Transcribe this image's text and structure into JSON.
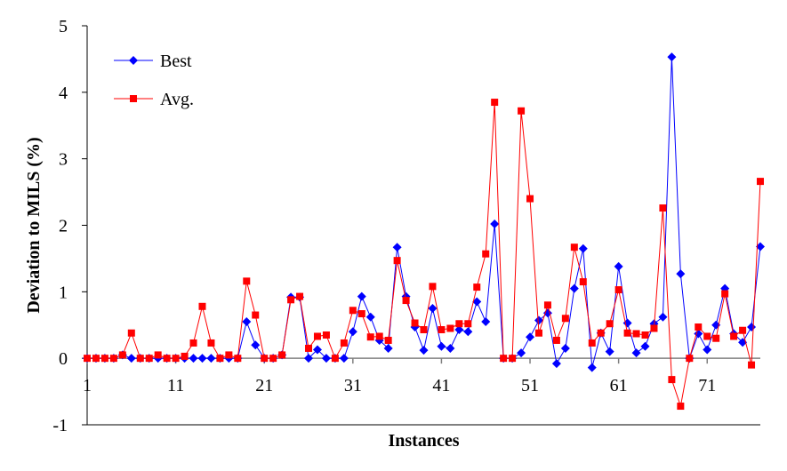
{
  "chart_data": {
    "type": "line",
    "title": "",
    "xlabel": "Instances",
    "ylabel": "Deviation to MILS (%)",
    "ylim": [
      -1,
      5
    ],
    "y_ticks": [
      "-1",
      "0",
      "1",
      "2",
      "3",
      "4",
      "5"
    ],
    "x_ticks": [
      "1",
      "11",
      "21",
      "31",
      "41",
      "51",
      "61",
      "71"
    ],
    "x_tick_positions": [
      1,
      11,
      21,
      31,
      41,
      51,
      61,
      71
    ],
    "x_range": [
      1,
      77
    ],
    "grid": false,
    "legend_position": "top-left",
    "x": [
      1,
      2,
      3,
      4,
      5,
      6,
      7,
      8,
      9,
      10,
      11,
      12,
      13,
      14,
      15,
      16,
      17,
      18,
      19,
      20,
      21,
      22,
      23,
      24,
      25,
      26,
      27,
      28,
      29,
      30,
      31,
      32,
      33,
      34,
      35,
      36,
      37,
      38,
      39,
      40,
      41,
      42,
      43,
      44,
      45,
      46,
      47,
      48,
      49,
      50,
      51,
      52,
      53,
      54,
      55,
      56,
      57,
      58,
      59,
      60,
      61,
      62,
      63,
      64,
      65,
      66,
      67,
      68,
      69,
      70,
      71,
      72,
      73,
      74,
      75,
      76,
      77
    ],
    "series": [
      {
        "name": "Best",
        "color": "#0000ff",
        "marker": "diamond",
        "values": [
          0,
          0,
          0,
          0,
          0.05,
          0,
          0,
          0,
          0,
          0,
          0,
          0,
          0,
          0,
          0,
          0,
          0,
          0,
          0.55,
          0.2,
          0,
          0,
          0.05,
          0.92,
          0.92,
          0,
          0.13,
          0,
          0,
          0,
          0.4,
          0.93,
          0.62,
          0.27,
          0.15,
          1.67,
          0.93,
          0.47,
          0.12,
          0.75,
          0.18,
          0.15,
          0.43,
          0.4,
          0.85,
          0.55,
          2.02,
          0,
          0,
          0.08,
          0.32,
          0.57,
          0.68,
          -0.08,
          0.15,
          1.05,
          1.65,
          -0.14,
          0.38,
          0.1,
          1.38,
          0.53,
          0.08,
          0.18,
          0.52,
          0.62,
          4.53,
          1.27,
          0,
          0.37,
          0.13,
          0.5,
          1.05,
          0.37,
          0.24,
          0.47,
          1.68
        ]
      },
      {
        "name": "Avg.",
        "color": "#ff0000",
        "marker": "square",
        "values": [
          0,
          0,
          0,
          0,
          0.05,
          0.38,
          0,
          0,
          0.05,
          0,
          0,
          0.03,
          0.23,
          0.78,
          0.23,
          0,
          0.05,
          0,
          1.16,
          0.65,
          0,
          0,
          0.05,
          0.88,
          0.93,
          0.15,
          0.33,
          0.35,
          0,
          0.23,
          0.72,
          0.67,
          0.32,
          0.33,
          0.27,
          1.47,
          0.87,
          0.53,
          0.43,
          1.08,
          0.43,
          0.45,
          0.52,
          0.52,
          1.07,
          1.57,
          3.85,
          0,
          0,
          3.72,
          2.4,
          0.38,
          0.8,
          0.27,
          0.6,
          1.67,
          1.15,
          0.23,
          0.38,
          0.52,
          1.03,
          0.38,
          0.37,
          0.35,
          0.45,
          2.26,
          -0.32,
          -0.72,
          0,
          0.47,
          0.33,
          0.3,
          0.97,
          0.33,
          0.42,
          -0.1,
          2.66
        ]
      }
    ]
  }
}
